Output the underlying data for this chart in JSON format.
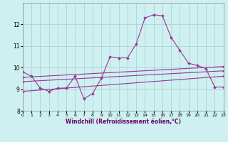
{
  "x": [
    0,
    1,
    2,
    3,
    4,
    5,
    6,
    7,
    8,
    9,
    10,
    11,
    12,
    13,
    14,
    15,
    16,
    17,
    18,
    19,
    20,
    21,
    22,
    23
  ],
  "line1": [
    9.8,
    9.6,
    9.05,
    8.9,
    9.05,
    9.05,
    9.6,
    8.55,
    8.8,
    9.5,
    10.5,
    10.45,
    10.45,
    11.1,
    12.3,
    12.45,
    12.4,
    11.4,
    10.8,
    10.2,
    10.1,
    9.95,
    9.1,
    9.1
  ],
  "line2_x": [
    0,
    23
  ],
  "line2_y": [
    9.55,
    10.05
  ],
  "line3_x": [
    0,
    23
  ],
  "line3_y": [
    9.35,
    9.85
  ],
  "line4_x": [
    0,
    23
  ],
  "line4_y": [
    8.9,
    9.6
  ],
  "xlabel": "Windchill (Refroidissement éolien,°C)",
  "ylabel": "",
  "ylim": [
    8.0,
    13.0
  ],
  "xlim": [
    0,
    23
  ],
  "yticks": [
    8,
    9,
    10,
    11,
    12
  ],
  "xticks": [
    0,
    1,
    2,
    3,
    4,
    5,
    6,
    7,
    8,
    9,
    10,
    11,
    12,
    13,
    14,
    15,
    16,
    17,
    18,
    19,
    20,
    21,
    22,
    23
  ],
  "line_color": "#993399",
  "bg_color": "#cef0f0",
  "grid_color": "#aacccc",
  "marker": "D",
  "markersize": 2.0,
  "linewidth": 0.8
}
